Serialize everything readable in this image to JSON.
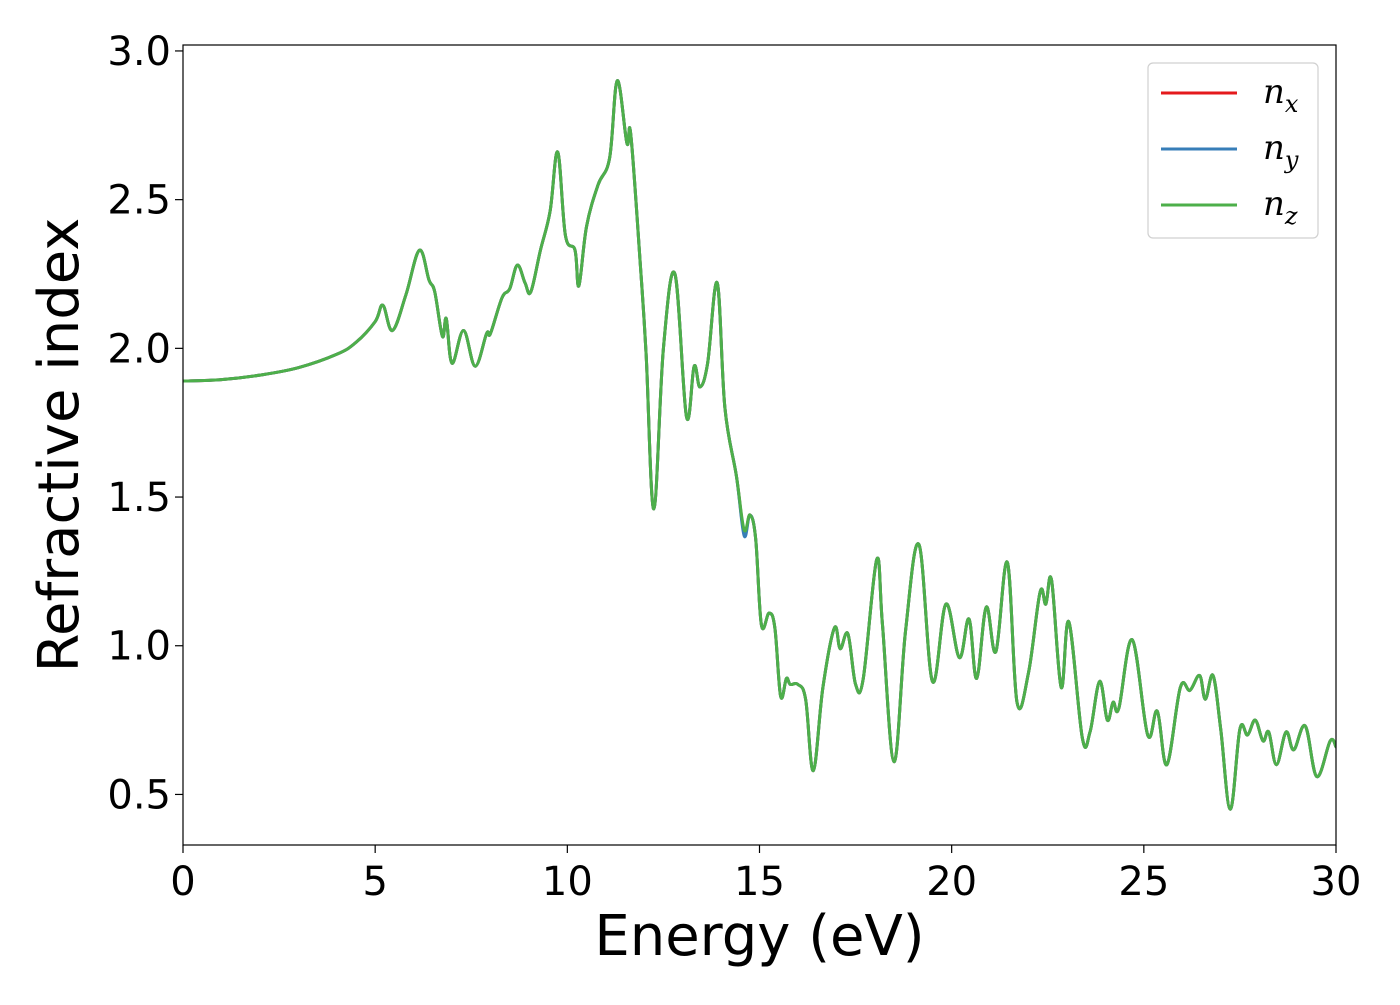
{
  "chart_data": {
    "type": "line",
    "title": "",
    "xlabel": "Energy (eV)",
    "ylabel": "Refractive index",
    "xlim": [
      0,
      30
    ],
    "ylim": [
      0.33,
      3.02
    ],
    "xticks": [
      0,
      5,
      10,
      15,
      20,
      25,
      30
    ],
    "xtick_labels": [
      "0",
      "5",
      "10",
      "15",
      "20",
      "25",
      "30"
    ],
    "yticks": [
      0.5,
      1.0,
      1.5,
      2.0,
      2.5,
      3.0
    ],
    "ytick_labels": [
      "0.5",
      "1.0",
      "1.5",
      "2.0",
      "2.5",
      "3.0"
    ],
    "grid": false,
    "legend_position": "top-right",
    "series": [
      {
        "name": "n_x",
        "label_base": "n",
        "label_sub": "x",
        "color": "#e41a1c",
        "x": [
          0,
          1,
          2,
          3,
          4,
          4.5,
          5.0,
          5.2,
          5.45,
          5.8,
          6.15,
          6.4,
          6.55,
          6.75,
          6.85,
          7.0,
          7.3,
          7.6,
          7.9,
          8.0,
          8.3,
          8.5,
          8.7,
          8.9,
          9.05,
          9.3,
          9.55,
          9.75,
          9.95,
          10.2,
          10.3,
          10.5,
          10.8,
          11.1,
          11.3,
          11.55,
          11.65,
          11.9,
          12.05,
          12.25,
          12.5,
          12.8,
          13.1,
          13.3,
          13.45,
          13.65,
          13.9,
          14.1,
          14.4,
          14.6,
          14.75,
          14.9,
          15.05,
          15.25,
          15.4,
          15.55,
          15.7,
          15.8,
          16.0,
          16.2,
          16.4,
          16.65,
          16.95,
          17.1,
          17.3,
          17.5,
          17.7,
          18.05,
          18.2,
          18.5,
          18.8,
          19.15,
          19.5,
          19.85,
          20.2,
          20.45,
          20.65,
          20.9,
          21.15,
          21.45,
          21.7,
          22.0,
          22.3,
          22.45,
          22.6,
          22.85,
          23.05,
          23.4,
          23.6,
          23.85,
          24.05,
          24.2,
          24.35,
          24.7,
          25.1,
          25.35,
          25.6,
          25.95,
          26.2,
          26.45,
          26.6,
          26.8,
          27.0,
          27.25,
          27.5,
          27.7,
          27.9,
          28.1,
          28.25,
          28.45,
          28.7,
          28.9,
          29.2,
          29.5,
          29.85,
          30.0
        ],
        "y": [
          1.89,
          1.895,
          1.91,
          1.935,
          1.98,
          2.02,
          2.09,
          2.145,
          2.06,
          2.18,
          2.33,
          2.23,
          2.19,
          2.04,
          2.1,
          1.95,
          2.06,
          1.94,
          2.05,
          2.05,
          2.17,
          2.2,
          2.28,
          2.22,
          2.19,
          2.33,
          2.46,
          2.66,
          2.38,
          2.33,
          2.21,
          2.41,
          2.55,
          2.64,
          2.9,
          2.69,
          2.72,
          2.28,
          1.98,
          1.46,
          2.0,
          2.25,
          1.77,
          1.94,
          1.87,
          1.95,
          2.22,
          1.8,
          1.57,
          1.38,
          1.44,
          1.36,
          1.07,
          1.11,
          1.06,
          0.83,
          0.89,
          0.87,
          0.87,
          0.82,
          0.58,
          0.86,
          1.06,
          0.99,
          1.04,
          0.87,
          0.89,
          1.29,
          1.07,
          0.61,
          1.05,
          1.34,
          0.88,
          1.14,
          0.96,
          1.09,
          0.89,
          1.13,
          0.98,
          1.28,
          0.81,
          0.91,
          1.18,
          1.14,
          1.22,
          0.86,
          1.08,
          0.69,
          0.71,
          0.88,
          0.75,
          0.81,
          0.79,
          1.02,
          0.7,
          0.78,
          0.6,
          0.86,
          0.85,
          0.9,
          0.82,
          0.9,
          0.72,
          0.45,
          0.72,
          0.7,
          0.75,
          0.68,
          0.71,
          0.6,
          0.71,
          0.65,
          0.73,
          0.56,
          0.68,
          0.66
        ]
      },
      {
        "name": "n_y",
        "label_base": "n",
        "label_sub": "y",
        "color": "#377eb8",
        "x": [
          0,
          1,
          2,
          3,
          4,
          4.5,
          5.0,
          5.2,
          5.45,
          5.8,
          6.15,
          6.4,
          6.55,
          6.75,
          6.85,
          7.0,
          7.3,
          7.6,
          7.9,
          8.0,
          8.3,
          8.5,
          8.7,
          8.9,
          9.05,
          9.3,
          9.55,
          9.75,
          9.95,
          10.2,
          10.3,
          10.5,
          10.8,
          11.1,
          11.3,
          11.55,
          11.65,
          11.9,
          12.05,
          12.25,
          12.5,
          12.8,
          13.1,
          13.3,
          13.45,
          13.65,
          13.9,
          14.1,
          14.4,
          14.6,
          14.75,
          14.9,
          15.05,
          15.25,
          15.4,
          15.55,
          15.7,
          15.8,
          16.0,
          16.2,
          16.4,
          16.65,
          16.95,
          17.1,
          17.3,
          17.5,
          17.7,
          18.05,
          18.2,
          18.5,
          18.8,
          19.15,
          19.5,
          19.85,
          20.2,
          20.45,
          20.65,
          20.9,
          21.15,
          21.45,
          21.7,
          22.0,
          22.3,
          22.45,
          22.6,
          22.85,
          23.05,
          23.4,
          23.6,
          23.85,
          24.05,
          24.2,
          24.35,
          24.7,
          25.1,
          25.35,
          25.6,
          25.95,
          26.2,
          26.45,
          26.6,
          26.8,
          27.0,
          27.25,
          27.5,
          27.7,
          27.9,
          28.1,
          28.25,
          28.45,
          28.7,
          28.9,
          29.2,
          29.5,
          29.85,
          30.0
        ],
        "y": [
          1.89,
          1.895,
          1.91,
          1.935,
          1.98,
          2.02,
          2.09,
          2.145,
          2.06,
          2.18,
          2.33,
          2.23,
          2.19,
          2.04,
          2.1,
          1.95,
          2.06,
          1.94,
          2.05,
          2.05,
          2.17,
          2.2,
          2.28,
          2.22,
          2.19,
          2.33,
          2.46,
          2.66,
          2.38,
          2.33,
          2.21,
          2.41,
          2.55,
          2.64,
          2.9,
          2.69,
          2.72,
          2.28,
          1.98,
          1.46,
          2.0,
          2.25,
          1.77,
          1.94,
          1.87,
          1.95,
          2.22,
          1.8,
          1.57,
          1.37,
          1.44,
          1.36,
          1.07,
          1.11,
          1.06,
          0.83,
          0.89,
          0.87,
          0.87,
          0.82,
          0.58,
          0.86,
          1.06,
          0.99,
          1.04,
          0.87,
          0.89,
          1.29,
          1.07,
          0.61,
          1.05,
          1.34,
          0.88,
          1.14,
          0.96,
          1.09,
          0.89,
          1.13,
          0.98,
          1.28,
          0.81,
          0.91,
          1.18,
          1.14,
          1.22,
          0.86,
          1.08,
          0.69,
          0.71,
          0.88,
          0.75,
          0.81,
          0.79,
          1.02,
          0.7,
          0.78,
          0.6,
          0.86,
          0.85,
          0.9,
          0.82,
          0.9,
          0.72,
          0.45,
          0.72,
          0.7,
          0.75,
          0.68,
          0.71,
          0.6,
          0.71,
          0.65,
          0.73,
          0.56,
          0.68,
          0.66
        ]
      },
      {
        "name": "n_z",
        "label_base": "n",
        "label_sub": "z",
        "color": "#4daf4a",
        "x": [
          0,
          1,
          2,
          3,
          4,
          4.5,
          5.0,
          5.2,
          5.45,
          5.8,
          6.15,
          6.4,
          6.55,
          6.75,
          6.85,
          7.0,
          7.3,
          7.6,
          7.9,
          8.0,
          8.3,
          8.5,
          8.7,
          8.9,
          9.05,
          9.3,
          9.55,
          9.75,
          9.95,
          10.2,
          10.3,
          10.5,
          10.8,
          11.1,
          11.3,
          11.55,
          11.65,
          11.9,
          12.05,
          12.25,
          12.5,
          12.8,
          13.1,
          13.3,
          13.45,
          13.65,
          13.9,
          14.1,
          14.4,
          14.6,
          14.75,
          14.9,
          15.05,
          15.25,
          15.4,
          15.55,
          15.7,
          15.8,
          16.0,
          16.2,
          16.4,
          16.65,
          16.95,
          17.1,
          17.3,
          17.5,
          17.7,
          18.05,
          18.2,
          18.5,
          18.8,
          19.15,
          19.5,
          19.85,
          20.2,
          20.45,
          20.65,
          20.9,
          21.15,
          21.45,
          21.7,
          22.0,
          22.3,
          22.45,
          22.6,
          22.85,
          23.05,
          23.4,
          23.6,
          23.85,
          24.05,
          24.2,
          24.35,
          24.7,
          25.1,
          25.35,
          25.6,
          25.95,
          26.2,
          26.45,
          26.6,
          26.8,
          27.0,
          27.25,
          27.5,
          27.7,
          27.9,
          28.1,
          28.25,
          28.45,
          28.7,
          28.9,
          29.2,
          29.5,
          29.85,
          30.0
        ],
        "y": [
          1.89,
          1.895,
          1.91,
          1.935,
          1.98,
          2.02,
          2.09,
          2.145,
          2.06,
          2.18,
          2.33,
          2.23,
          2.19,
          2.04,
          2.1,
          1.95,
          2.06,
          1.94,
          2.05,
          2.05,
          2.17,
          2.2,
          2.28,
          2.22,
          2.19,
          2.33,
          2.46,
          2.66,
          2.38,
          2.33,
          2.21,
          2.41,
          2.55,
          2.64,
          2.9,
          2.69,
          2.72,
          2.28,
          1.98,
          1.46,
          2.0,
          2.25,
          1.77,
          1.94,
          1.87,
          1.95,
          2.22,
          1.8,
          1.57,
          1.39,
          1.44,
          1.36,
          1.07,
          1.11,
          1.06,
          0.83,
          0.89,
          0.87,
          0.87,
          0.82,
          0.58,
          0.86,
          1.06,
          0.99,
          1.04,
          0.87,
          0.89,
          1.29,
          1.07,
          0.61,
          1.05,
          1.34,
          0.88,
          1.14,
          0.96,
          1.09,
          0.89,
          1.13,
          0.98,
          1.28,
          0.81,
          0.91,
          1.18,
          1.14,
          1.22,
          0.86,
          1.08,
          0.69,
          0.71,
          0.88,
          0.75,
          0.81,
          0.79,
          1.02,
          0.7,
          0.78,
          0.6,
          0.86,
          0.85,
          0.9,
          0.82,
          0.9,
          0.72,
          0.45,
          0.72,
          0.7,
          0.75,
          0.68,
          0.71,
          0.6,
          0.71,
          0.65,
          0.73,
          0.56,
          0.68,
          0.66
        ]
      }
    ]
  }
}
